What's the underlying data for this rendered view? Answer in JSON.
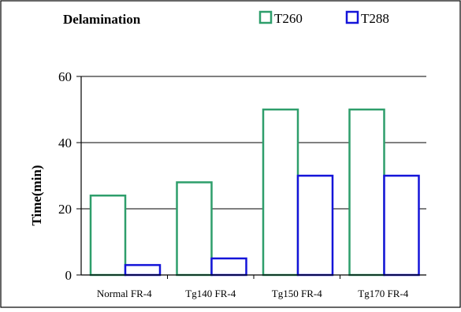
{
  "chart_data": {
    "type": "bar",
    "title": "Delamination",
    "xlabel": "",
    "ylabel": "Time(min)",
    "categories": [
      "Normal FR-4",
      "Tg140 FR-4",
      "Tg150 FR-4",
      "Tg170 FR-4"
    ],
    "series": [
      {
        "name": "T260",
        "values": [
          24,
          28,
          50,
          50
        ],
        "color": "#2e9e6b"
      },
      {
        "name": "T288",
        "values": [
          3,
          5,
          30,
          30
        ],
        "color": "#1414d9"
      }
    ],
    "ylim": [
      0,
      60
    ],
    "yticks": [
      0,
      20,
      40,
      60
    ],
    "grid": true,
    "legend": "top-right"
  }
}
